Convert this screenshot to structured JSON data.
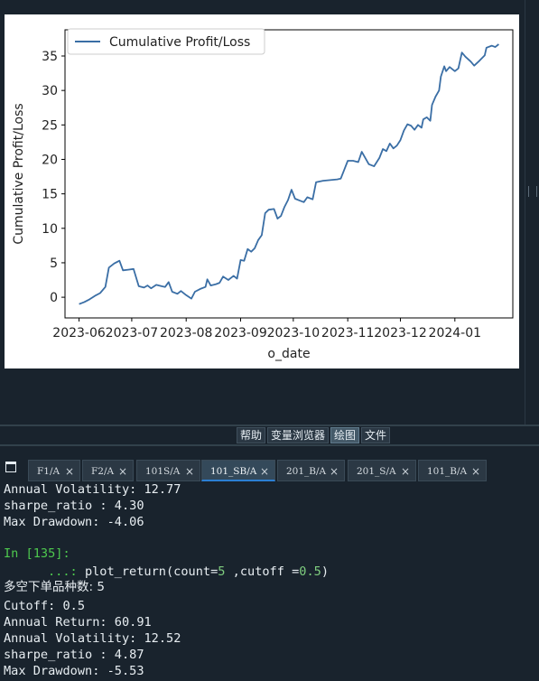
{
  "chart_data": {
    "type": "line",
    "series": [
      {
        "name": "Cumulative Profit/Loss",
        "color": "#3a6ea5",
        "points": [
          [
            "2023-06-01",
            -1.0
          ],
          [
            "2023-06-04",
            -0.7
          ],
          [
            "2023-06-07",
            -0.3
          ],
          [
            "2023-06-10",
            0.2
          ],
          [
            "2023-06-13",
            0.6
          ],
          [
            "2023-06-16",
            1.5
          ],
          [
            "2023-06-18",
            4.3
          ],
          [
            "2023-06-21",
            4.9
          ],
          [
            "2023-06-24",
            5.3
          ],
          [
            "2023-06-26",
            3.9
          ],
          [
            "2023-06-29",
            4.0
          ],
          [
            "2023-07-02",
            4.1
          ],
          [
            "2023-07-05",
            1.6
          ],
          [
            "2023-07-08",
            1.4
          ],
          [
            "2023-07-10",
            1.7
          ],
          [
            "2023-07-12",
            1.3
          ],
          [
            "2023-07-15",
            1.8
          ],
          [
            "2023-07-18",
            1.6
          ],
          [
            "2023-07-20",
            1.5
          ],
          [
            "2023-07-22",
            2.2
          ],
          [
            "2023-07-24",
            0.8
          ],
          [
            "2023-07-27",
            0.5
          ],
          [
            "2023-07-29",
            0.9
          ],
          [
            "2023-08-01",
            0.3
          ],
          [
            "2023-08-04",
            -0.2
          ],
          [
            "2023-08-06",
            0.8
          ],
          [
            "2023-08-09",
            1.2
          ],
          [
            "2023-08-12",
            1.5
          ],
          [
            "2023-08-13",
            2.6
          ],
          [
            "2023-08-15",
            1.7
          ],
          [
            "2023-08-18",
            1.9
          ],
          [
            "2023-08-20",
            2.1
          ],
          [
            "2023-08-22",
            3.0
          ],
          [
            "2023-08-25",
            2.5
          ],
          [
            "2023-08-28",
            3.1
          ],
          [
            "2023-08-30",
            2.7
          ],
          [
            "2023-09-01",
            5.4
          ],
          [
            "2023-09-03",
            5.3
          ],
          [
            "2023-09-05",
            7.0
          ],
          [
            "2023-09-07",
            6.6
          ],
          [
            "2023-09-09",
            7.1
          ],
          [
            "2023-09-11",
            8.3
          ],
          [
            "2023-09-13",
            9.0
          ],
          [
            "2023-09-15",
            12.2
          ],
          [
            "2023-09-17",
            12.7
          ],
          [
            "2023-09-20",
            12.8
          ],
          [
            "2023-09-22",
            11.4
          ],
          [
            "2023-09-24",
            11.8
          ],
          [
            "2023-09-26",
            13.1
          ],
          [
            "2023-09-28",
            14.1
          ],
          [
            "2023-09-30",
            15.6
          ],
          [
            "2023-10-02",
            14.3
          ],
          [
            "2023-10-05",
            14.0
          ],
          [
            "2023-10-07",
            13.8
          ],
          [
            "2023-10-09",
            14.5
          ],
          [
            "2023-10-12",
            14.2
          ],
          [
            "2023-10-14",
            16.7
          ],
          [
            "2023-10-18",
            16.9
          ],
          [
            "2023-10-22",
            17.0
          ],
          [
            "2023-10-26",
            17.1
          ],
          [
            "2023-10-28",
            17.2
          ],
          [
            "2023-10-30",
            18.5
          ],
          [
            "2023-11-01",
            19.8
          ],
          [
            "2023-11-04",
            19.8
          ],
          [
            "2023-11-07",
            19.6
          ],
          [
            "2023-11-09",
            21.1
          ],
          [
            "2023-11-11",
            20.2
          ],
          [
            "2023-11-13",
            19.3
          ],
          [
            "2023-11-16",
            19.0
          ],
          [
            "2023-11-19",
            20.2
          ],
          [
            "2023-11-21",
            21.5
          ],
          [
            "2023-11-23",
            21.2
          ],
          [
            "2023-11-25",
            22.3
          ],
          [
            "2023-11-27",
            21.6
          ],
          [
            "2023-11-29",
            22.0
          ],
          [
            "2023-12-01",
            22.8
          ],
          [
            "2023-12-03",
            24.2
          ],
          [
            "2023-12-05",
            25.1
          ],
          [
            "2023-12-07",
            24.9
          ],
          [
            "2023-12-09",
            24.3
          ],
          [
            "2023-12-11",
            25.0
          ],
          [
            "2023-12-13",
            24.6
          ],
          [
            "2023-12-14",
            25.8
          ],
          [
            "2023-12-16",
            26.1
          ],
          [
            "2023-12-18",
            25.6
          ],
          [
            "2023-12-19",
            27.9
          ],
          [
            "2023-12-21",
            29.1
          ],
          [
            "2023-12-23",
            30.0
          ],
          [
            "2023-12-24",
            32.0
          ],
          [
            "2023-12-26",
            33.5
          ],
          [
            "2023-12-27",
            32.8
          ],
          [
            "2023-12-29",
            33.4
          ],
          [
            "2024-01-01",
            32.8
          ],
          [
            "2024-01-03",
            33.2
          ],
          [
            "2024-01-05",
            35.5
          ],
          [
            "2024-01-07",
            34.9
          ],
          [
            "2024-01-10",
            34.2
          ],
          [
            "2024-01-12",
            33.6
          ],
          [
            "2024-01-15",
            34.3
          ],
          [
            "2024-01-18",
            35.1
          ],
          [
            "2024-01-19",
            36.2
          ],
          [
            "2024-01-22",
            36.5
          ],
          [
            "2024-01-24",
            36.3
          ],
          [
            "2024-01-26",
            36.7
          ]
        ]
      }
    ],
    "xlabel": "o_date",
    "ylabel": "Cumulative Profit/Loss",
    "xticks": [
      "2023-06",
      "2023-07",
      "2023-08",
      "2023-09",
      "2023-10",
      "2023-11",
      "2023-12",
      "2024-01"
    ],
    "yticks": [
      0,
      5,
      10,
      15,
      20,
      25,
      30,
      35
    ],
    "xlim": [
      "2023-05-24",
      "2024-02-03"
    ],
    "ylim": [
      -3.0,
      38.8
    ],
    "grid": false,
    "legend": "top-left"
  },
  "pane_tabs": [
    "帮助",
    "变量浏览器",
    "绘图",
    "文件"
  ],
  "active_pane_tab": "绘图",
  "console_tabs": [
    {
      "label": "F1/A",
      "close": "×"
    },
    {
      "label": "F2/A",
      "close": "×"
    },
    {
      "label": "101S/A",
      "close": "×"
    },
    {
      "label": "101_SB/A",
      "close": "×",
      "active": true
    },
    {
      "label": "201_B/A",
      "close": "×"
    },
    {
      "label": "201_S/A",
      "close": "×"
    },
    {
      "label": "101_B/A",
      "close": "×"
    }
  ],
  "console": {
    "prev_volatility": "Annual Volatility: 12.77",
    "prev_sharpe": "sharpe_ratio : 4.30",
    "prev_drawdown": "Max Drawdown: -4.06",
    "prompt": "In [135]:",
    "continuation": "...:",
    "cmd_name": "plot_return",
    "cmd_args": {
      "count": "5",
      "cutoff": "0.5"
    },
    "count_line": "多空下单品种数: 5",
    "cutoff_line": "Cutoff: 0.5",
    "return_line": "Annual Return: 60.91",
    "volatility_line": "Annual Volatility: 12.52",
    "sharpe_line": "sharpe_ratio : 4.87",
    "drawdown_line": "Max Drawdown: -5.53"
  }
}
